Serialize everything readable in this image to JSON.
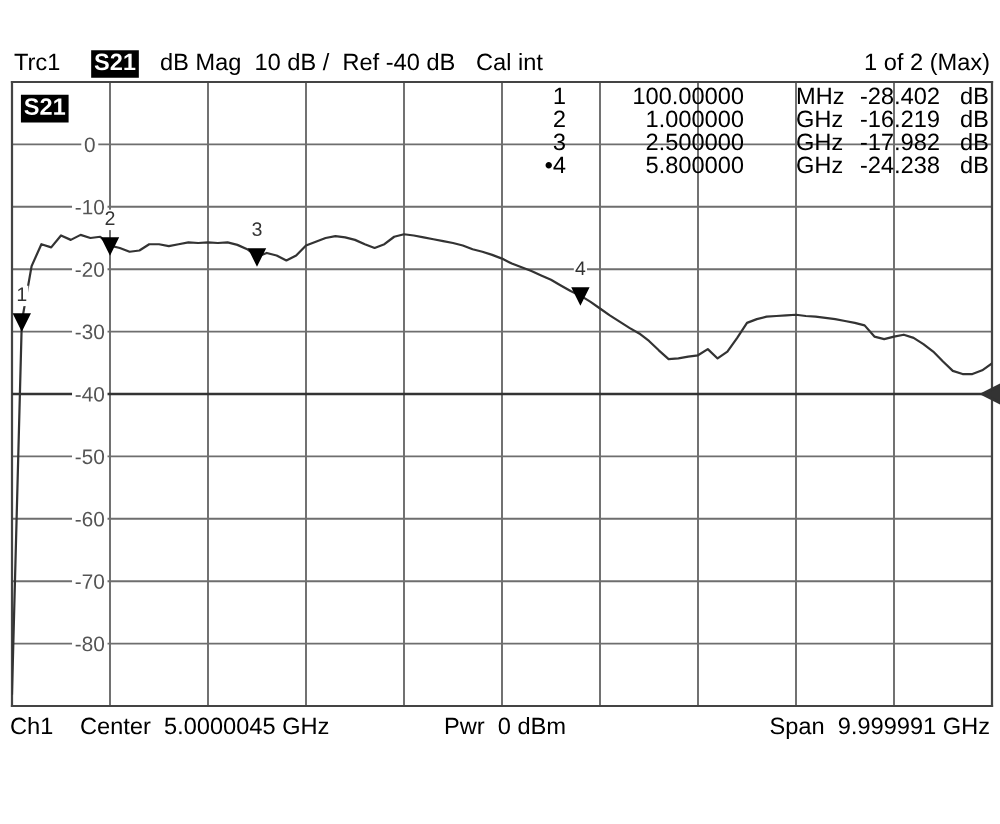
{
  "chart_data": {
    "type": "line",
    "ylabel": "S21",
    "categories": [
      null,
      null,
      null,
      null,
      null,
      null,
      null,
      null,
      null,
      null,
      null,
      null,
      null,
      null,
      null,
      null,
      null,
      null,
      null,
      null,
      null,
      null,
      null,
      null,
      null,
      null,
      null,
      null,
      null,
      null,
      null,
      null,
      null,
      null,
      null,
      null,
      null,
      null,
      null,
      null,
      null,
      null,
      null,
      null,
      null,
      null,
      null,
      null,
      null,
      null,
      null,
      null,
      null,
      null,
      null,
      null,
      null,
      null,
      null,
      null,
      null,
      null,
      null,
      null,
      null,
      null,
      null,
      null,
      null,
      null,
      null,
      null,
      null,
      null,
      null,
      null,
      null,
      null,
      null,
      null,
      null,
      null,
      null,
      null,
      null,
      null,
      null,
      null,
      null,
      null,
      null,
      null,
      null,
      null,
      null,
      null,
      null,
      null,
      null,
      null,
      null
    ],
    "series": [
      {
        "color": "#333333",
        "values": [
          -88,
          -28.402,
          -19.5,
          -16,
          -16.5,
          -14.6,
          -15.3,
          -14.5,
          -15,
          -14.8,
          -16.219,
          -16.6,
          -17.2,
          -17,
          -16,
          -16,
          -16.3,
          -16,
          -15.7,
          -15.8,
          -15.7,
          -15.8,
          -15.7,
          -16.1,
          -16.8,
          -17.982,
          -17.4,
          -17.8,
          -18.6,
          -17.8,
          -16.2,
          -15.6,
          -15,
          -14.7,
          -14.9,
          -15.3,
          -16,
          -16.6,
          -16,
          -14.8,
          -14.4,
          -14.6,
          -14.9,
          -15.2,
          -15.5,
          -15.8,
          -16.2,
          -16.8,
          -17.2,
          -17.7,
          -18.3,
          -19.1,
          -19.7,
          -20.3,
          -21,
          -21.7,
          -22.6,
          -23.5,
          -24.238,
          -25.2,
          -26.3,
          -27.4,
          -28.4,
          -29.4,
          -30.3,
          -31.5,
          -33,
          -34.4,
          -34.3,
          -34,
          -33.8,
          -32.8,
          -34.3,
          -33.2,
          -31,
          -28.6,
          -28,
          -27.6,
          -27.5,
          -27.4,
          -27.3,
          -27.5,
          -27.6,
          -27.8,
          -28,
          -28.3,
          -28.6,
          -29,
          -30.8,
          -31.2,
          -30.8,
          -30.5,
          -31,
          -32,
          -33.2,
          -34.8,
          -36.3,
          -36.8,
          -36.8,
          -36.2,
          -35.1
        ]
      }
    ],
    "ylim": [
      -90,
      10
    ],
    "yticks": [
      {
        "value": 10,
        "label": null
      },
      0,
      -10,
      -20,
      -30,
      -40,
      -50,
      -60,
      -70,
      -80,
      {
        "value": -90,
        "label": null
      }
    ],
    "tick_labels": "y",
    "grid": true,
    "line_style": "solid",
    "ref_lines": [
      {
        "axis": "y",
        "value": -40,
        "label": null,
        "color": "#333333",
        "line_style": "solid"
      }
    ],
    "annotations": [
      "Trc1",
      "S21",
      "dB Mag  10 dB /  Ref -40 dB",
      "Cal int",
      "1 of 2 (Max)",
      "1 100.00000 MHz -28.402 dB",
      "2 1.000000 GHz -16.219 dB",
      "3 2.500000 GHz -17.982 dB",
      "•4 5.800000 GHz -24.238 dB",
      {
        "text": "1",
        "y": -28.402
      },
      {
        "text": "2",
        "y": -16.219
      },
      {
        "text": "3",
        "y": -17.982
      },
      {
        "text": "4",
        "y": -24.238
      },
      "Ch1",
      "Center  5.0000045 GHz",
      "Pwr  0 dBm",
      "Span  9.999991 GHz"
    ]
  }
}
